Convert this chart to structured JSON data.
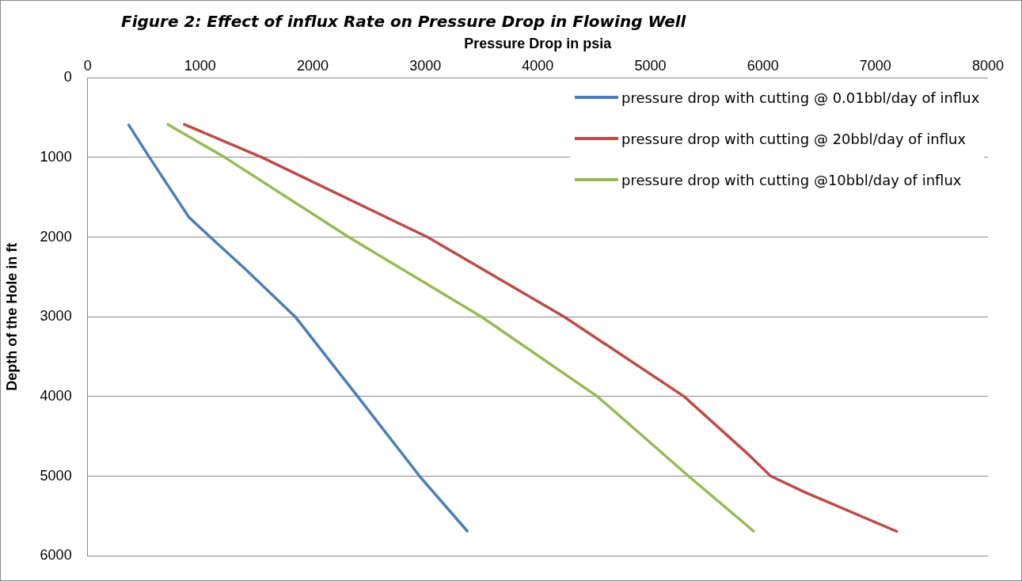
{
  "chart_data": {
    "type": "line",
    "title": "Figure 2: Effect of influx Rate on Pressure Drop in Flowing Well",
    "xlabel": "Pressure Drop in psia",
    "ylabel": "Depth of the Hole in ft",
    "xlim": [
      0,
      8000
    ],
    "xticks": [
      0,
      1000,
      2000,
      3000,
      4000,
      5000,
      6000,
      7000,
      8000
    ],
    "ylim": [
      6000,
      0
    ],
    "yticks": [
      0,
      1000,
      2000,
      3000,
      4000,
      5000,
      6000
    ],
    "grid": "y",
    "legend": "top right",
    "marker": "none",
    "line_style": "solid",
    "series": [
      {
        "name": "pressure drop with cutting @ 0.01bbl/day of influx",
        "color": "#4a7ebb",
        "x": [
          360,
          550,
          900,
          1090,
          1400,
          1845,
          2400,
          2950,
          3380
        ],
        "values": [
          580,
          1000,
          1750,
          2000,
          2400,
          3000,
          4000,
          5000,
          5700
        ]
      },
      {
        "name": "pressure drop with cutting @ 20bbl/day of influx",
        "color": "#be4b48",
        "x": [
          850,
          1550,
          3020,
          4235,
          5300,
          5850,
          6070,
          6370,
          7200
        ],
        "values": [
          580,
          1000,
          2000,
          3000,
          4000,
          4700,
          5000,
          5200,
          5700
        ]
      },
      {
        "name": "pressure drop with cutting @10bbl/day of influx",
        "color": "#98b954",
        "x": [
          705,
          1220,
          2320,
          3500,
          4530,
          5340,
          5926
        ],
        "values": [
          580,
          1000,
          2000,
          3000,
          4000,
          5000,
          5700
        ]
      }
    ]
  }
}
